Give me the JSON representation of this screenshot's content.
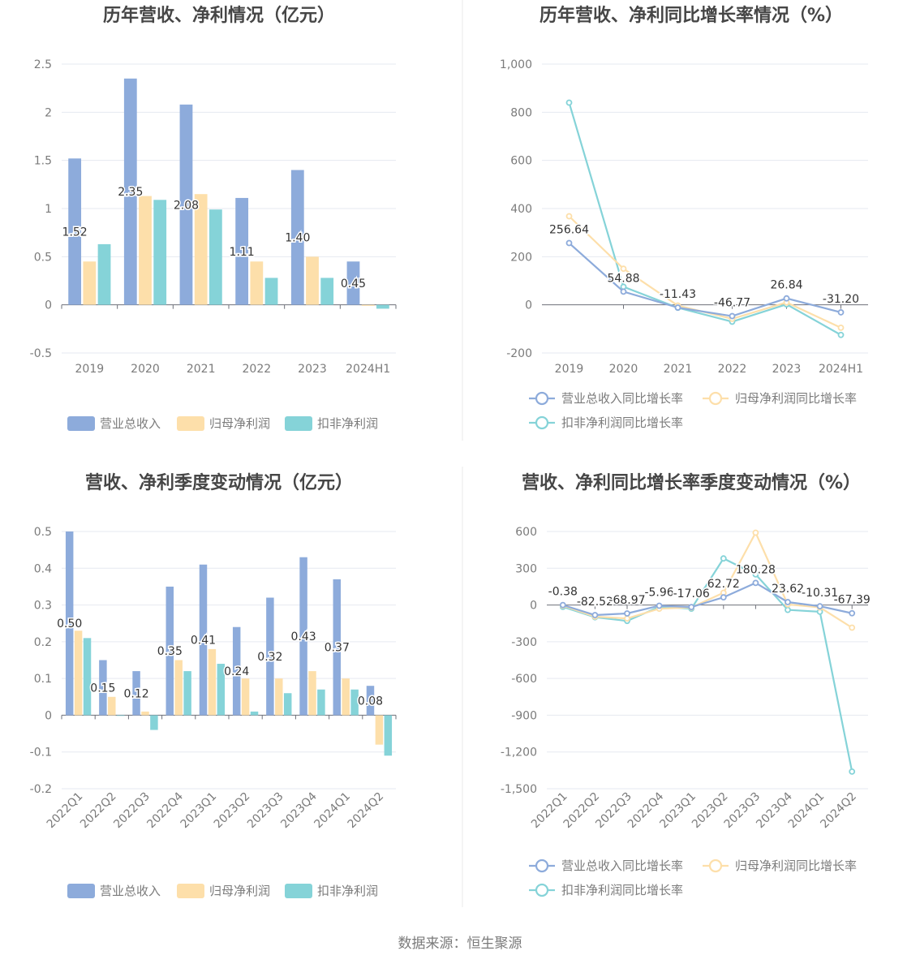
{
  "source": "数据来源：恒生聚源",
  "colors": {
    "revenue": "#8dabdb",
    "net_profit": "#fddfaa",
    "deducted_profit": "#85d3d8"
  },
  "chart_data": [
    {
      "id": "annual_bar",
      "type": "bar",
      "title": "历年营收、净利情况（亿元）",
      "categories": [
        "2019",
        "2020",
        "2021",
        "2022",
        "2023",
        "2024H1"
      ],
      "ylim": [
        -0.5,
        2.5
      ],
      "yticks": [
        "-0.5",
        "0",
        "0.5",
        "1",
        "1.5",
        "2",
        "2.5"
      ],
      "ytick_values": [
        -0.5,
        0,
        0.5,
        1,
        1.5,
        2,
        2.5
      ],
      "series": [
        {
          "name": "营业总收入",
          "values": [
            1.52,
            2.35,
            2.08,
            1.11,
            1.4,
            0.45
          ],
          "labels": [
            "1.52",
            "2.35",
            "2.08",
            "1.11",
            "1.40",
            "0.45"
          ]
        },
        {
          "name": "归母净利润",
          "values": [
            0.45,
            1.13,
            1.15,
            0.45,
            0.5,
            -0.01
          ]
        },
        {
          "name": "扣非净利润",
          "values": [
            0.63,
            1.09,
            0.99,
            0.28,
            0.28,
            -0.04
          ]
        }
      ],
      "grid": true,
      "legend": "bottom"
    },
    {
      "id": "annual_growth",
      "type": "line",
      "title": "历年营收、净利同比增长率情况（%）",
      "categories": [
        "2019",
        "2020",
        "2021",
        "2022",
        "2023",
        "2024H1"
      ],
      "ylim": [
        -200,
        1000
      ],
      "yticks": [
        "-200",
        "0",
        "200",
        "400",
        "600",
        "800",
        "1,000"
      ],
      "ytick_values": [
        -200,
        0,
        200,
        400,
        600,
        800,
        1000
      ],
      "series": [
        {
          "name": "营业总收入同比增长率",
          "values": [
            256.64,
            54.88,
            -11.43,
            -46.77,
            26.84,
            -31.2
          ],
          "labels": [
            "256.64",
            "54.88",
            "-11.43",
            "-46.77",
            "26.84",
            "-31.20"
          ]
        },
        {
          "name": "归母净利润同比增长率",
          "values": [
            368,
            150,
            -3,
            -58,
            10,
            -95
          ]
        },
        {
          "name": "扣非净利润同比增长率",
          "values": [
            840,
            75,
            -12,
            -70,
            2,
            -125
          ]
        }
      ],
      "grid": true,
      "legend": "bottom"
    },
    {
      "id": "quarterly_bar",
      "type": "bar",
      "title": "营收、净利季度变动情况（亿元）",
      "categories": [
        "2022Q1",
        "2022Q2",
        "2022Q3",
        "2022Q4",
        "2023Q1",
        "2023Q2",
        "2023Q3",
        "2023Q4",
        "2024Q1",
        "2024Q2"
      ],
      "ylim": [
        -0.2,
        0.5
      ],
      "yticks": [
        "-0.2",
        "-0.1",
        "0",
        "0.1",
        "0.2",
        "0.3",
        "0.4",
        "0.5"
      ],
      "ytick_values": [
        -0.2,
        -0.1,
        0,
        0.1,
        0.2,
        0.3,
        0.4,
        0.5
      ],
      "series": [
        {
          "name": "营业总收入",
          "values": [
            0.5,
            0.15,
            0.12,
            0.35,
            0.41,
            0.24,
            0.32,
            0.43,
            0.37,
            0.08
          ],
          "labels": [
            "0.50",
            "0.15",
            "0.12",
            "0.35",
            "0.41",
            "0.24",
            "0.32",
            "0.43",
            "0.37",
            "0.08"
          ]
        },
        {
          "name": "归母净利润",
          "values": [
            0.23,
            0.05,
            0.01,
            0.15,
            0.18,
            0.1,
            0.1,
            0.12,
            0.1,
            -0.08
          ]
        },
        {
          "name": "扣非净利润",
          "values": [
            0.21,
            0.0,
            -0.04,
            0.12,
            0.14,
            0.01,
            0.06,
            0.07,
            0.07,
            -0.11
          ]
        }
      ],
      "grid": true,
      "legend": "bottom"
    },
    {
      "id": "quarterly_growth",
      "type": "line",
      "title": "营收、净利同比增长率季度变动情况（%）",
      "categories": [
        "2022Q1",
        "2022Q2",
        "2022Q3",
        "2022Q4",
        "2023Q1",
        "2023Q2",
        "2023Q3",
        "2023Q4",
        "2024Q1",
        "2024Q2"
      ],
      "ylim": [
        -1500,
        600
      ],
      "yticks": [
        "-1,500",
        "-1,200",
        "-900",
        "-600",
        "-300",
        "0",
        "300",
        "600"
      ],
      "ytick_values": [
        -1500,
        -1200,
        -900,
        -600,
        -300,
        0,
        300,
        600
      ],
      "series": [
        {
          "name": "营业总收入同比增长率",
          "values": [
            -0.38,
            -82.52,
            -68.97,
            -5.96,
            -17.06,
            62.72,
            180.28,
            23.62,
            -10.31,
            -67.39
          ],
          "labels": [
            "-0.38",
            "-82.52",
            "-68.97",
            "-5.96",
            "-17.06",
            "62.72",
            "180.28",
            "23.62",
            "-10.31",
            "-67.39"
          ]
        },
        {
          "name": "归母净利润同比增长率",
          "values": [
            -5,
            -95,
            -110,
            -30,
            -20,
            100,
            590,
            5,
            -20,
            -185
          ]
        },
        {
          "name": "扣非净利润同比增长率",
          "values": [
            -15,
            -100,
            -130,
            -15,
            -30,
            380,
            250,
            -40,
            -55,
            -1360
          ]
        }
      ],
      "grid": true,
      "legend": "bottom"
    }
  ]
}
